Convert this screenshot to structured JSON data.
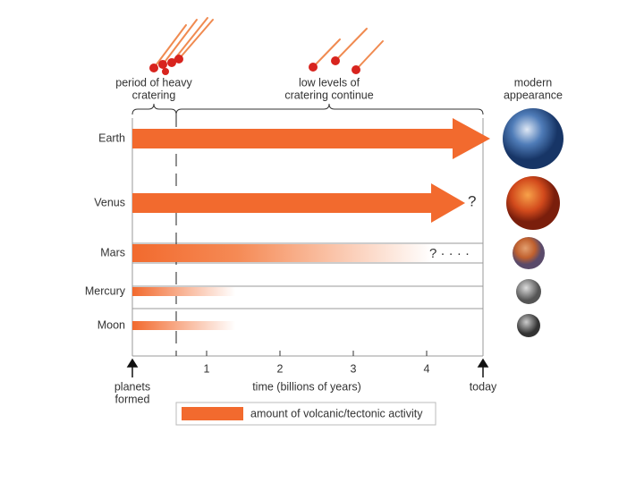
{
  "header": {
    "left": [
      "period of heavy",
      "cratering"
    ],
    "middle": [
      "low levels of",
      "cratering continue"
    ],
    "right": [
      "modern",
      "appearance"
    ]
  },
  "rows": [
    {
      "label": "Earth"
    },
    {
      "label": "Venus",
      "note": "?"
    },
    {
      "label": "Mars",
      "note": "? · · · ·"
    },
    {
      "label": "Mercury"
    },
    {
      "label": "Moon"
    }
  ],
  "axis": {
    "ticks": [
      "1",
      "2",
      "3",
      "4"
    ],
    "title": "time (billions of years)",
    "start": [
      "planets",
      "formed"
    ],
    "end": "today"
  },
  "legend": "amount of volcanic/tectonic activity"
}
